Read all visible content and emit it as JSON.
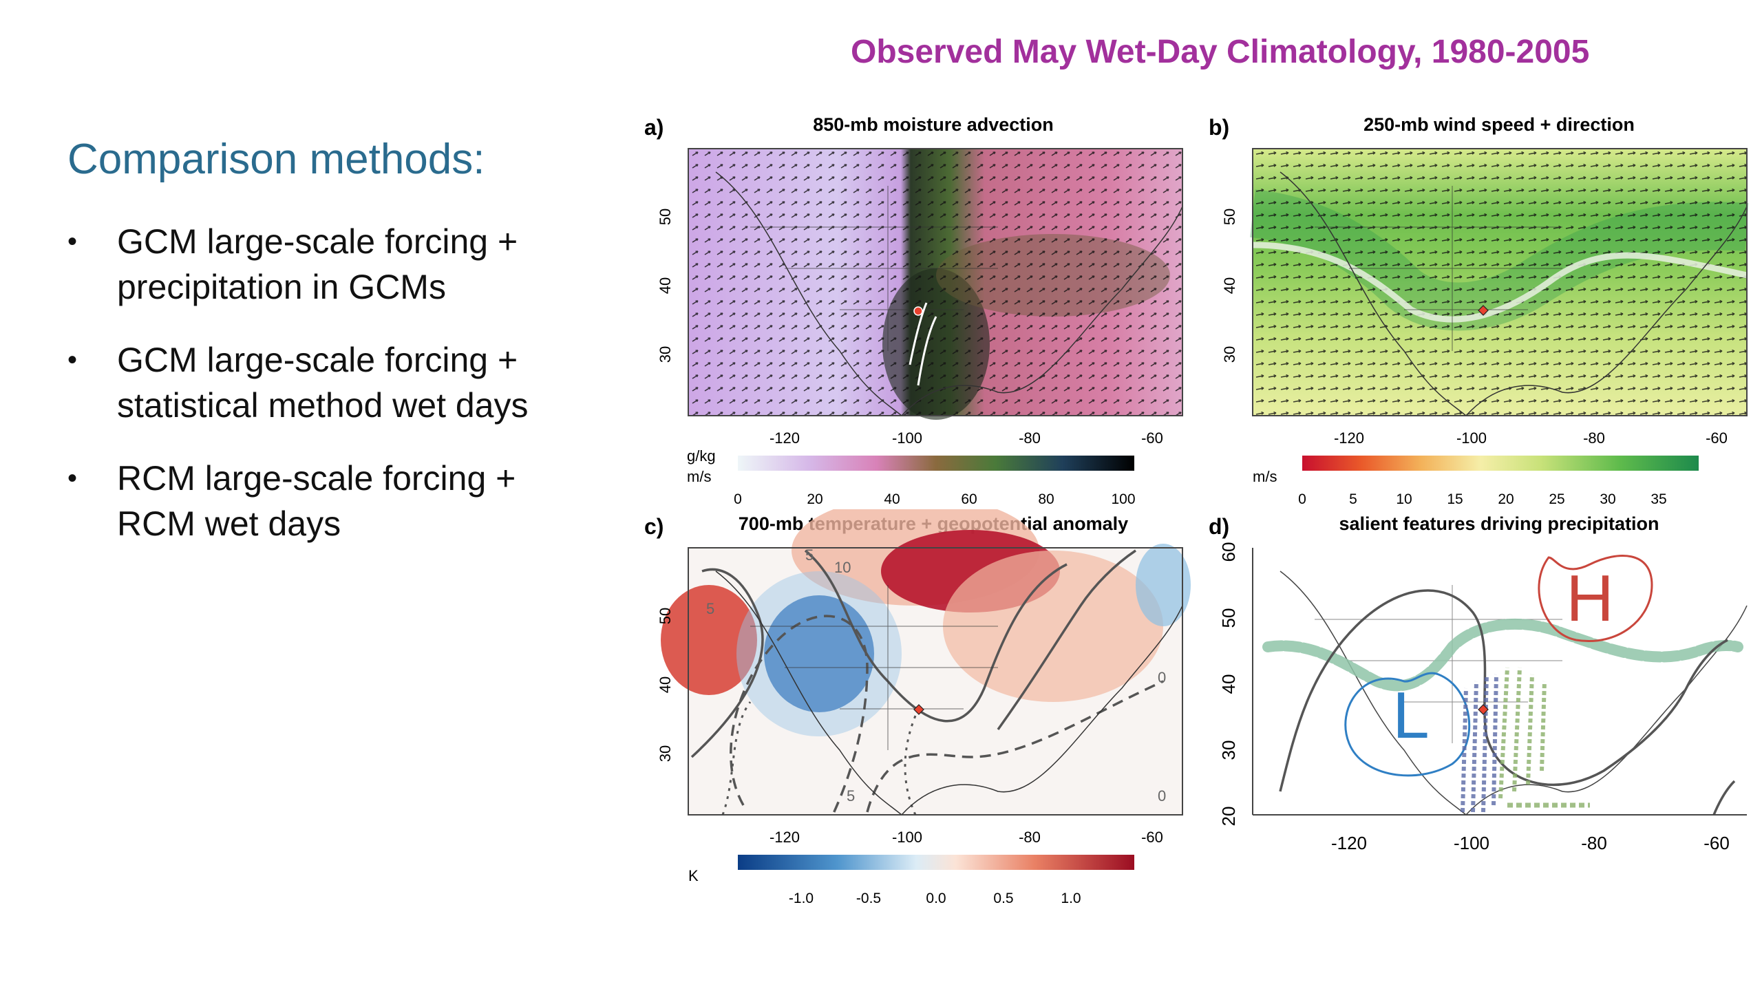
{
  "slide": {
    "title": "Observed May Wet-Day Climatology, 1980-2005",
    "left_heading": "Comparison methods:",
    "bullets": [
      {
        "line1": "GCM large-scale forcing +",
        "line2": "precipitation in GCMs"
      },
      {
        "line1": "GCM large-scale forcing +",
        "line2": "statistical method wet days"
      },
      {
        "line1": "RCM large-scale forcing +",
        "line2": "RCM wet days"
      }
    ],
    "bullet_symbol": "•"
  },
  "panels": {
    "a": {
      "letter": "a)",
      "title": "850-mb moisture advection",
      "x_ticks": [
        "-120",
        "-100",
        "-80",
        "-60"
      ],
      "y_ticks": [
        "50",
        "40",
        "30"
      ],
      "cb_unit1": "g/kg",
      "cb_unit2": "m/s",
      "cb_ticks": [
        "0",
        "20",
        "40",
        "60",
        "80",
        "100"
      ]
    },
    "b": {
      "letter": "b)",
      "title": "250-mb wind speed + direction",
      "x_ticks": [
        "-120",
        "-100",
        "-80",
        "-60"
      ],
      "y_ticks": [
        "50",
        "40",
        "30"
      ],
      "cb_unit": "m/s",
      "cb_ticks": [
        "0",
        "5",
        "10",
        "15",
        "20",
        "25",
        "30",
        "35"
      ]
    },
    "c": {
      "letter": "c)",
      "title": "700-mb temperature + geopotential anomaly",
      "x_ticks": [
        "-120",
        "-100",
        "-80",
        "-60"
      ],
      "y_ticks": [
        "50",
        "40",
        "30"
      ],
      "cb_unit": "K",
      "cb_ticks": [
        "-1.0",
        "-0.5",
        "0.0",
        "0.5",
        "1.0"
      ],
      "contour_labels": [
        "5",
        "10",
        "5",
        "0",
        "0",
        "5"
      ]
    },
    "d": {
      "letter": "d)",
      "title": "salient features driving precipitation",
      "x_ticks": [
        "-120",
        "-100",
        "-80",
        "-60"
      ],
      "y_ticks": [
        "60",
        "50",
        "40",
        "30",
        "20"
      ],
      "high_label": "H",
      "low_label": "L"
    }
  },
  "colors": {
    "title": "#a2309c",
    "heading": "#2a6b8e",
    "high": "#c9463c",
    "low": "#2f7fc4",
    "jet": "#8fc4a8"
  }
}
